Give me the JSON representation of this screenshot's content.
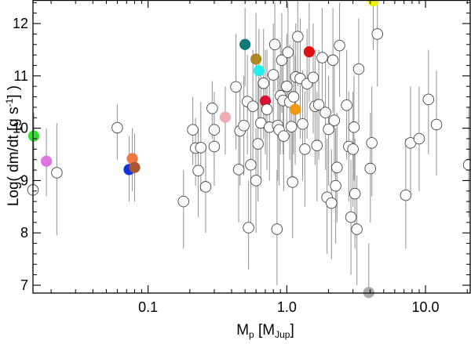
{
  "chart_data": {
    "type": "scatter",
    "title": "",
    "xscale": "log",
    "xlim": [
      0.0148,
      21
    ],
    "ylim": [
      6.85,
      12.45
    ],
    "grid": false,
    "legend": "none",
    "xlabel": {
      "main": "M",
      "sub1": "p",
      "mid": " [M",
      "sub2": "Jup",
      "end": "]"
    },
    "ylabel": {
      "main": "Log( dm/dt [g s",
      "sup": "-1",
      "end": "] )"
    },
    "xticks": [
      {
        "value": 0.1,
        "label": "0.1"
      },
      {
        "value": 1.0,
        "label": "1.0"
      },
      {
        "value": 10.0,
        "label": "10.0"
      }
    ],
    "yticks": [
      {
        "value": 7,
        "label": "7"
      },
      {
        "value": 8,
        "label": "8"
      },
      {
        "value": 9,
        "label": "9"
      },
      {
        "value": 10,
        "label": "10"
      },
      {
        "value": 11,
        "label": "11"
      },
      {
        "value": 12,
        "label": "12"
      }
    ],
    "colors": {
      "open_marker": "#ffffff",
      "open_edge": "#444444",
      "error_bar": "#9a9a9a",
      "axes": "#000000"
    },
    "points": [
      {
        "x": 0.0148,
        "y": 8.82,
        "lo": 7.9,
        "hi": 9.5,
        "color": "#ffffff"
      },
      {
        "x": 0.015,
        "y": 9.85,
        "lo": 8.8,
        "hi": 10.3,
        "color": "#33dd33"
      },
      {
        "x": 0.0185,
        "y": 9.37,
        "lo": 8.7,
        "hi": 10.0,
        "color": "#dd77dd"
      },
      {
        "x": 0.022,
        "y": 9.15,
        "lo": 7.95,
        "hi": 10.1,
        "color": "#ffffff"
      },
      {
        "x": 0.06,
        "y": 10.01,
        "lo": 9.4,
        "hi": 10.45,
        "color": "#ffffff"
      },
      {
        "x": 0.073,
        "y": 9.21,
        "lo": 8.6,
        "hi": 9.85,
        "color": "#1133dd"
      },
      {
        "x": 0.077,
        "y": 9.42,
        "lo": 8.8,
        "hi": 10.0,
        "color": "#ee7744"
      },
      {
        "x": 0.08,
        "y": 9.25,
        "lo": 8.6,
        "hi": 9.9,
        "color": "#aa5533"
      },
      {
        "x": 0.18,
        "y": 8.6,
        "lo": 7.7,
        "hi": 9.2,
        "color": "#ffffff"
      },
      {
        "x": 0.21,
        "y": 9.97,
        "lo": 9.3,
        "hi": 10.6,
        "color": "#ffffff"
      },
      {
        "x": 0.22,
        "y": 9.62,
        "lo": 8.9,
        "hi": 10.2,
        "color": "#ffffff"
      },
      {
        "x": 0.23,
        "y": 9.19,
        "lo": 8.3,
        "hi": 10.0,
        "color": "#ffffff"
      },
      {
        "x": 0.24,
        "y": 9.63,
        "lo": 8.8,
        "hi": 10.5,
        "color": "#ffffff"
      },
      {
        "x": 0.26,
        "y": 8.88,
        "lo": 8.0,
        "hi": 9.6,
        "color": "#ffffff"
      },
      {
        "x": 0.29,
        "y": 10.38,
        "lo": 9.8,
        "hi": 10.9,
        "color": "#ffffff"
      },
      {
        "x": 0.3,
        "y": 9.97,
        "lo": 9.2,
        "hi": 10.7,
        "color": "#ffffff"
      },
      {
        "x": 0.3,
        "y": 9.65,
        "lo": 8.9,
        "hi": 10.4,
        "color": "#ffffff"
      },
      {
        "x": 0.36,
        "y": 10.21,
        "lo": 9.5,
        "hi": 10.8,
        "color": "#f2aab2"
      },
      {
        "x": 0.43,
        "y": 10.79,
        "lo": 9.6,
        "hi": 11.8,
        "color": "#ffffff"
      },
      {
        "x": 0.45,
        "y": 9.21,
        "lo": 8.2,
        "hi": 10.1,
        "color": "#ffffff"
      },
      {
        "x": 0.46,
        "y": 9.95,
        "lo": 8.9,
        "hi": 10.8,
        "color": "#ffffff"
      },
      {
        "x": 0.49,
        "y": 10.05,
        "lo": 9.1,
        "hi": 11.0,
        "color": "#ffffff"
      },
      {
        "x": 0.5,
        "y": 11.6,
        "lo": 10.8,
        "hi": 12.3,
        "color": "#117777"
      },
      {
        "x": 0.52,
        "y": 10.51,
        "lo": 9.5,
        "hi": 11.4,
        "color": "#ffffff"
      },
      {
        "x": 0.53,
        "y": 8.1,
        "lo": 7.3,
        "hi": 9.0,
        "color": "#ffffff"
      },
      {
        "x": 0.55,
        "y": 9.3,
        "lo": 8.2,
        "hi": 10.4,
        "color": "#ffffff"
      },
      {
        "x": 0.57,
        "y": 10.42,
        "lo": 9.3,
        "hi": 11.5,
        "color": "#ffffff"
      },
      {
        "x": 0.6,
        "y": 9.0,
        "lo": 8.0,
        "hi": 10.0,
        "color": "#ffffff"
      },
      {
        "x": 0.6,
        "y": 11.32,
        "lo": 10.4,
        "hi": 12.2,
        "color": "#aa8822"
      },
      {
        "x": 0.62,
        "y": 9.7,
        "lo": 8.6,
        "hi": 10.9,
        "color": "#ffffff"
      },
      {
        "x": 0.63,
        "y": 11.1,
        "lo": 10.2,
        "hi": 11.9,
        "color": "#22eeee"
      },
      {
        "x": 0.65,
        "y": 10.1,
        "lo": 9.0,
        "hi": 11.2,
        "color": "#ffffff"
      },
      {
        "x": 0.68,
        "y": 10.86,
        "lo": 9.8,
        "hi": 11.9,
        "color": "#ffffff"
      },
      {
        "x": 0.7,
        "y": 10.52,
        "lo": 9.5,
        "hi": 11.5,
        "color": "#dd1133"
      },
      {
        "x": 0.72,
        "y": 10.36,
        "lo": 9.2,
        "hi": 11.5,
        "color": "#ffffff"
      },
      {
        "x": 0.75,
        "y": 10.02,
        "lo": 9.0,
        "hi": 11.0,
        "color": "#ffffff"
      },
      {
        "x": 0.8,
        "y": 11.02,
        "lo": 10.0,
        "hi": 12.0,
        "color": "#ffffff"
      },
      {
        "x": 0.82,
        "y": 11.6,
        "lo": 10.7,
        "hi": 12.4,
        "color": "#ffffff"
      },
      {
        "x": 0.85,
        "y": 8.07,
        "lo": 7.0,
        "hi": 9.2,
        "color": "#ffffff"
      },
      {
        "x": 0.86,
        "y": 10.05,
        "lo": 9.0,
        "hi": 11.0,
        "color": "#ffffff"
      },
      {
        "x": 0.88,
        "y": 9.97,
        "lo": 8.9,
        "hi": 11.0,
        "color": "#ffffff"
      },
      {
        "x": 0.9,
        "y": 10.62,
        "lo": 9.5,
        "hi": 11.6,
        "color": "#ffffff"
      },
      {
        "x": 0.92,
        "y": 11.3,
        "lo": 10.3,
        "hi": 12.2,
        "color": "#ffffff"
      },
      {
        "x": 0.94,
        "y": 10.53,
        "lo": 9.5,
        "hi": 11.5,
        "color": "#ffffff"
      },
      {
        "x": 0.95,
        "y": 9.85,
        "lo": 8.8,
        "hi": 10.9,
        "color": "#ffffff"
      },
      {
        "x": 1.0,
        "y": 10.8,
        "lo": 9.8,
        "hi": 11.8,
        "color": "#ffffff"
      },
      {
        "x": 1.02,
        "y": 11.45,
        "lo": 10.5,
        "hi": 12.4,
        "color": "#ffffff"
      },
      {
        "x": 1.05,
        "y": 10.5,
        "lo": 9.4,
        "hi": 11.6,
        "color": "#ffffff"
      },
      {
        "x": 1.08,
        "y": 10.03,
        "lo": 9.0,
        "hi": 11.0,
        "color": "#ffffff"
      },
      {
        "x": 1.1,
        "y": 8.97,
        "lo": 7.9,
        "hi": 10.0,
        "color": "#ffffff"
      },
      {
        "x": 1.12,
        "y": 10.6,
        "lo": 9.5,
        "hi": 11.7,
        "color": "#ffffff"
      },
      {
        "x": 1.15,
        "y": 10.36,
        "lo": 9.3,
        "hi": 11.4,
        "color": "#ee9911"
      },
      {
        "x": 1.16,
        "y": 10.98,
        "lo": 10.0,
        "hi": 12.0,
        "color": "#ffffff"
      },
      {
        "x": 1.2,
        "y": 11.75,
        "lo": 10.8,
        "hi": 12.45,
        "color": "#ffffff"
      },
      {
        "x": 1.25,
        "y": 10.95,
        "lo": 9.8,
        "hi": 12.1,
        "color": "#ffffff"
      },
      {
        "x": 1.3,
        "y": 10.08,
        "lo": 9.0,
        "hi": 11.1,
        "color": "#ffffff"
      },
      {
        "x": 1.35,
        "y": 9.6,
        "lo": 8.5,
        "hi": 10.7,
        "color": "#ffffff"
      },
      {
        "x": 1.4,
        "y": 10.85,
        "lo": 9.8,
        "hi": 11.9,
        "color": "#ffffff"
      },
      {
        "x": 1.45,
        "y": 11.46,
        "lo": 10.5,
        "hi": 12.4,
        "color": "#dd1111"
      },
      {
        "x": 1.55,
        "y": 10.97,
        "lo": 9.9,
        "hi": 12.0,
        "color": "#ffffff"
      },
      {
        "x": 1.6,
        "y": 10.42,
        "lo": 9.3,
        "hi": 11.5,
        "color": "#ffffff"
      },
      {
        "x": 1.65,
        "y": 9.67,
        "lo": 8.6,
        "hi": 10.7,
        "color": "#ffffff"
      },
      {
        "x": 1.7,
        "y": 10.45,
        "lo": 9.4,
        "hi": 11.5,
        "color": "#ffffff"
      },
      {
        "x": 1.8,
        "y": 11.35,
        "lo": 10.4,
        "hi": 12.3,
        "color": "#ffffff"
      },
      {
        "x": 1.9,
        "y": 10.3,
        "lo": 9.2,
        "hi": 11.4,
        "color": "#ffffff"
      },
      {
        "x": 1.95,
        "y": 8.68,
        "lo": 7.6,
        "hi": 9.8,
        "color": "#ffffff"
      },
      {
        "x": 2.0,
        "y": 9.98,
        "lo": 8.9,
        "hi": 11.0,
        "color": "#ffffff"
      },
      {
        "x": 2.1,
        "y": 8.57,
        "lo": 7.5,
        "hi": 9.6,
        "color": "#ffffff"
      },
      {
        "x": 2.15,
        "y": 11.3,
        "lo": 10.3,
        "hi": 12.3,
        "color": "#ffffff"
      },
      {
        "x": 2.2,
        "y": 10.15,
        "lo": 9.1,
        "hi": 11.2,
        "color": "#ffffff"
      },
      {
        "x": 2.25,
        "y": 8.9,
        "lo": 7.8,
        "hi": 10.0,
        "color": "#ffffff"
      },
      {
        "x": 2.3,
        "y": 9.25,
        "lo": 8.2,
        "hi": 10.3,
        "color": "#ffffff"
      },
      {
        "x": 2.4,
        "y": 11.58,
        "lo": 10.6,
        "hi": 12.4,
        "color": "#ffffff"
      },
      {
        "x": 2.7,
        "y": 10.44,
        "lo": 9.4,
        "hi": 11.5,
        "color": "#ffffff"
      },
      {
        "x": 2.8,
        "y": 9.65,
        "lo": 8.6,
        "hi": 10.7,
        "color": "#ffffff"
      },
      {
        "x": 2.9,
        "y": 8.3,
        "lo": 7.2,
        "hi": 9.4,
        "color": "#ffffff"
      },
      {
        "x": 3.0,
        "y": 9.6,
        "lo": 8.5,
        "hi": 10.7,
        "color": "#ffffff"
      },
      {
        "x": 3.05,
        "y": 10.02,
        "lo": 9.0,
        "hi": 11.0,
        "color": "#ffffff"
      },
      {
        "x": 3.1,
        "y": 8.75,
        "lo": 7.7,
        "hi": 9.8,
        "color": "#ffffff"
      },
      {
        "x": 3.2,
        "y": 8.07,
        "lo": 7.0,
        "hi": 9.1,
        "color": "#ffffff"
      },
      {
        "x": 3.3,
        "y": 11.13,
        "lo": 10.1,
        "hi": 12.1,
        "color": "#ffffff"
      },
      {
        "x": 3.9,
        "y": 6.86,
        "lo": 6.86,
        "hi": 7.8,
        "color": "#aaaaaa"
      },
      {
        "x": 4.0,
        "y": 9.23,
        "lo": 8.2,
        "hi": 10.3,
        "color": "#ffffff"
      },
      {
        "x": 4.1,
        "y": 9.72,
        "lo": 8.7,
        "hi": 10.8,
        "color": "#ffffff"
      },
      {
        "x": 4.2,
        "y": 12.43,
        "lo": 11.5,
        "hi": 12.45,
        "color": "#eeee11"
      },
      {
        "x": 4.5,
        "y": 11.8,
        "lo": 10.8,
        "hi": 12.45,
        "color": "#ffffff"
      },
      {
        "x": 7.2,
        "y": 8.72,
        "lo": 7.7,
        "hi": 9.8,
        "color": "#ffffff"
      },
      {
        "x": 7.8,
        "y": 9.72,
        "lo": 8.7,
        "hi": 10.8,
        "color": "#ffffff"
      },
      {
        "x": 9.0,
        "y": 9.8,
        "lo": 8.8,
        "hi": 10.8,
        "color": "#ffffff"
      },
      {
        "x": 10.5,
        "y": 10.55,
        "lo": 9.5,
        "hi": 11.5,
        "color": "#ffffff"
      },
      {
        "x": 12.0,
        "y": 10.07,
        "lo": 9.1,
        "hi": 11.1,
        "color": "#ffffff"
      },
      {
        "x": 20.5,
        "y": 9.3,
        "lo": 8.3,
        "hi": 10.4,
        "color": "#ffffff"
      }
    ]
  }
}
